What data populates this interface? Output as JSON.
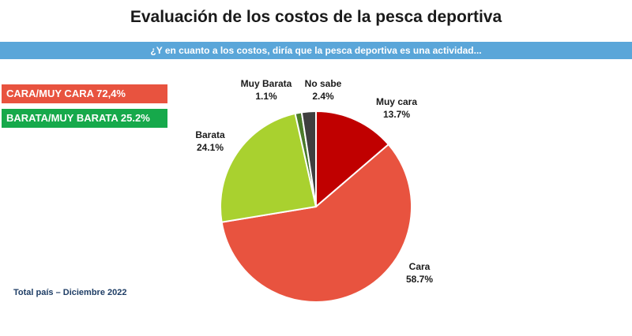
{
  "title": "Evaluación de los costos de la pesca deportiva",
  "question": "¿Y en cuanto a los costos, diría que la pesca deportiva es una actividad...",
  "summary": {
    "expensive_label": "CARA/MUY CARA 72,4%",
    "cheap_label": "BARATA/MUY BARATA 25.2%"
  },
  "footer_note": "Total país – Diciembre 2022",
  "colors": {
    "banner": "#5aa6d9",
    "badge_red": "#e8533f",
    "badge_green": "#16a94b"
  },
  "chart_data": {
    "type": "pie",
    "title": "Evaluación de los costos de la pesca deportiva",
    "slices": [
      {
        "label": "Muy cara",
        "value": 13.7,
        "value_label": "13.7%",
        "color": "#c00000"
      },
      {
        "label": "Cara",
        "value": 58.7,
        "value_label": "58.7%",
        "color": "#e8533f"
      },
      {
        "label": "Barata",
        "value": 24.1,
        "value_label": "24.1%",
        "color": "#a9d12f"
      },
      {
        "label": "Muy Barata",
        "value": 1.1,
        "value_label": "1.1%",
        "color": "#4a7a2a"
      },
      {
        "label": "No sabe",
        "value": 2.4,
        "value_label": "2.4%",
        "color": "#3f3f3f"
      }
    ]
  }
}
